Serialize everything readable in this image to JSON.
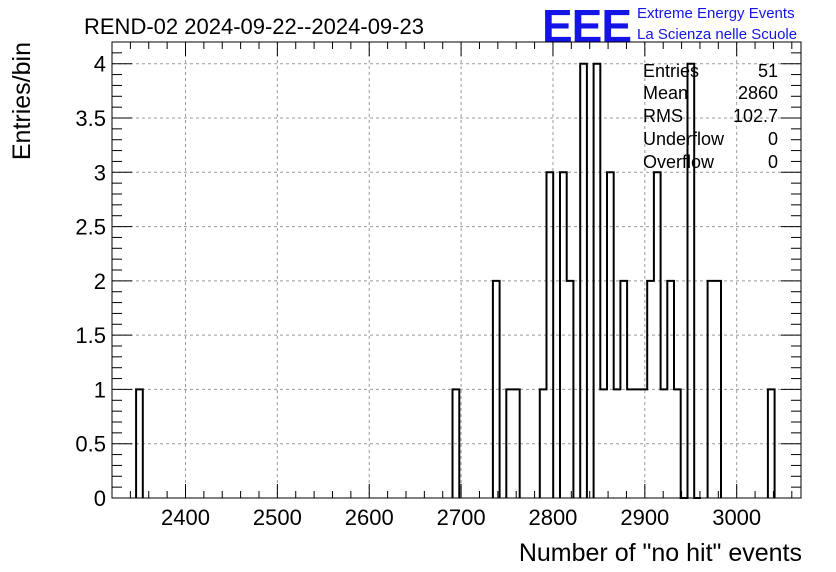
{
  "header": {
    "title": "REND-02 2024-09-22--2024-09-23",
    "logo_text": "EEE",
    "logo_line1": "Extreme Energy Events",
    "logo_line2": "La Scienza nelle Scuole",
    "logo_color": "#1414e6"
  },
  "stats": {
    "rows": [
      {
        "label": "Entries",
        "value": "51"
      },
      {
        "label": "Mean",
        "value": "2860"
      },
      {
        "label": "RMS",
        "value": "102.7"
      },
      {
        "label": "Underflow",
        "value": "0"
      },
      {
        "label": "Overflow",
        "value": "0"
      }
    ]
  },
  "chart_data": {
    "type": "bar",
    "xlabel": "Number of \"no hit\" events",
    "ylabel": "Entries/bin",
    "xlim": [
      2320,
      3070
    ],
    "ylim": [
      0,
      4.2
    ],
    "grid": true,
    "x_ticks": [
      "2400",
      "2500",
      "2600",
      "2700",
      "2800",
      "2900",
      "3000"
    ],
    "y_ticks": [
      "0",
      "0.5",
      "1",
      "1.5",
      "2",
      "2.5",
      "3",
      "3.5",
      "4"
    ],
    "bin_width": 7.3,
    "bins": [
      {
        "x": 2346.2,
        "value": 1
      },
      {
        "x": 2690.7,
        "value": 1
      },
      {
        "x": 2734.6,
        "value": 2
      },
      {
        "x": 2749.2,
        "value": 1
      },
      {
        "x": 2756.5,
        "value": 1
      },
      {
        "x": 2785.7,
        "value": 1
      },
      {
        "x": 2793.0,
        "value": 3
      },
      {
        "x": 2807.7,
        "value": 3
      },
      {
        "x": 2815.0,
        "value": 2
      },
      {
        "x": 2829.6,
        "value": 4
      },
      {
        "x": 2844.2,
        "value": 4
      },
      {
        "x": 2851.5,
        "value": 1
      },
      {
        "x": 2858.8,
        "value": 3
      },
      {
        "x": 2866.1,
        "value": 1
      },
      {
        "x": 2873.4,
        "value": 2
      },
      {
        "x": 2880.7,
        "value": 1
      },
      {
        "x": 2888.0,
        "value": 1
      },
      {
        "x": 2895.3,
        "value": 1
      },
      {
        "x": 2902.6,
        "value": 2
      },
      {
        "x": 2909.9,
        "value": 3
      },
      {
        "x": 2917.2,
        "value": 1
      },
      {
        "x": 2924.5,
        "value": 2
      },
      {
        "x": 2931.8,
        "value": 1
      },
      {
        "x": 2939.1,
        "value": 0
      },
      {
        "x": 2946.4,
        "value": 4
      },
      {
        "x": 2953.7,
        "value": 0
      },
      {
        "x": 2968.3,
        "value": 2
      },
      {
        "x": 2975.6,
        "value": 2
      },
      {
        "x": 3034.0,
        "value": 1
      }
    ]
  }
}
